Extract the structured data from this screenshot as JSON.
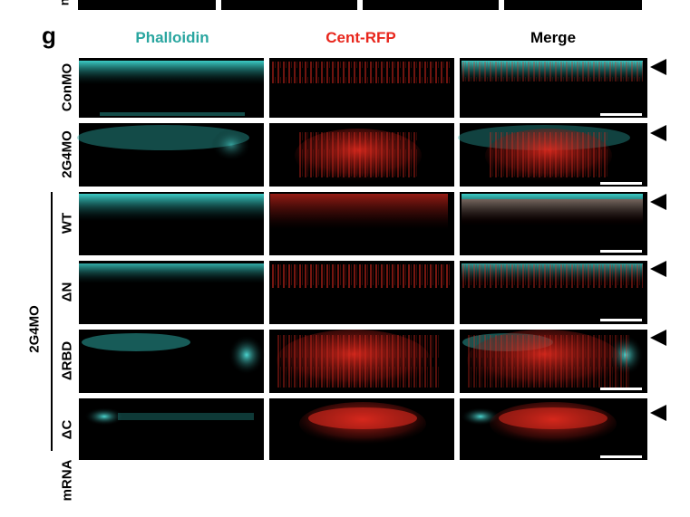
{
  "figure": {
    "panel_letter": "g",
    "top_fragment_letter": "n",
    "columns": [
      {
        "label": "Phalloidin",
        "color": "#2aa6a0"
      },
      {
        "label": "Cent-RFP",
        "color": "#e8261c"
      },
      {
        "label": "Merge",
        "color": "#000000"
      }
    ],
    "rows": [
      {
        "label": "ConMO"
      },
      {
        "label": "2G4MO"
      },
      {
        "label": "WT"
      },
      {
        "label": "ΔN"
      },
      {
        "label": "ΔRBD"
      },
      {
        "label": "ΔC"
      }
    ],
    "group_label": "2G4MO",
    "mrna_label": "mRNA",
    "colors": {
      "cyan": "#3fd6d0",
      "red": "#e02a1e",
      "background": "#000000"
    }
  }
}
